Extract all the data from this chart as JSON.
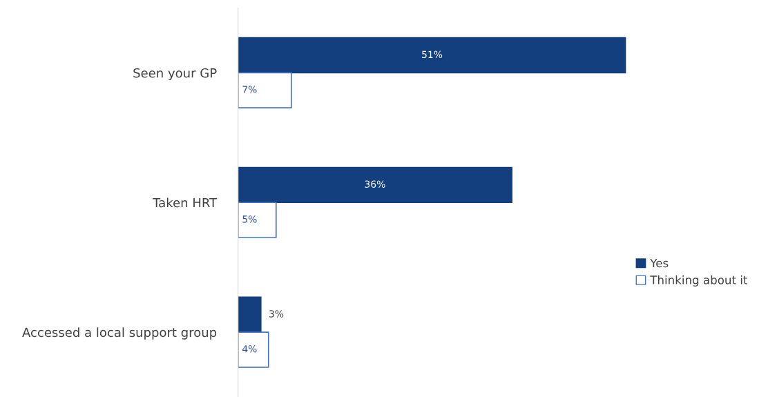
{
  "chart_data": {
    "type": "bar",
    "orientation": "horizontal",
    "categories": [
      "Seen your GP",
      "Taken HRT",
      "Accessed a local support group"
    ],
    "series": [
      {
        "name": "Yes",
        "color": "#133f7f",
        "values": [
          51,
          36,
          3
        ],
        "value_labels": [
          "51%",
          "36%",
          "3%"
        ]
      },
      {
        "name": "Thinking about it",
        "color": "#ffffff",
        "values": [
          7,
          5,
          4
        ],
        "value_labels": [
          "7%",
          "5%",
          "4%"
        ]
      }
    ],
    "legend": "right",
    "grid": false
  }
}
